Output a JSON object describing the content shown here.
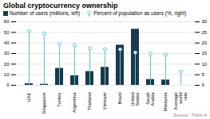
{
  "chart_data": {
    "type": "bar",
    "title": "Global cryptocurrency ownership",
    "caption": "Source: Triple A",
    "categories": [
      "UAE",
      "Singapore",
      "Turkey",
      "Argentina",
      "Thailand",
      "Vietnam",
      "Brazil",
      "United\nStates",
      "Saudi\nArabia",
      "Malaysia",
      "Average\nworld\nrate"
    ],
    "series": [
      {
        "name": "Number of users (millions, left)",
        "type": "bar",
        "color": "#1a3a4a",
        "values": [
          1.5,
          1.0,
          16.0,
          9.0,
          13.0,
          17.0,
          38.0,
          53.0,
          5.5,
          5.0,
          0.0
        ]
      },
      {
        "name": "Percent of population as users (%, right)",
        "type": "lollipop",
        "marker": "circle",
        "color": "#5bc8e0",
        "axis": "y2",
        "values": [
          25.5,
          24.5,
          19.5,
          19.0,
          17.5,
          17.0,
          17.0,
          15.5,
          15.0,
          14.5,
          6.5
        ]
      }
    ],
    "ylim": [
      0,
      60
    ],
    "yticks": [
      0,
      10,
      20,
      30,
      40,
      50,
      60
    ],
    "y2lim": [
      0,
      30
    ],
    "y2ticks": [
      0,
      5,
      10,
      15,
      20,
      25,
      30
    ],
    "grid": true,
    "legend": "upper left"
  }
}
